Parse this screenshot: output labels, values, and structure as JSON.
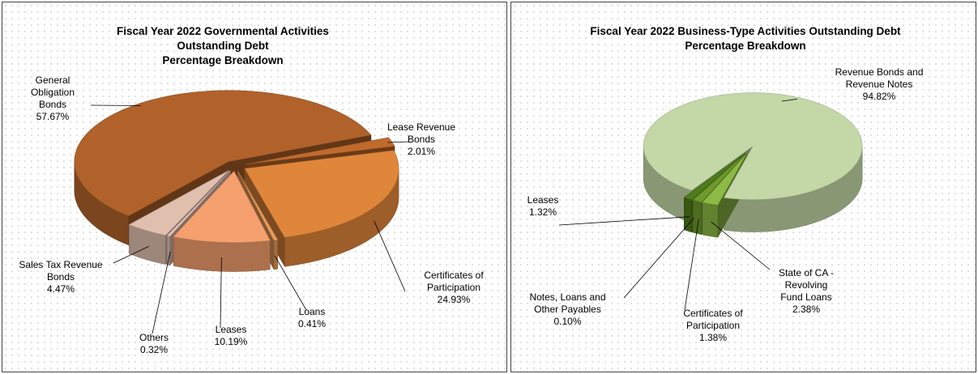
{
  "chart_data": [
    {
      "type": "pie3d",
      "title": [
        "Fiscal Year 2022 Governmental Activities",
        "Outstanding Debt",
        "Percentage Breakdown"
      ],
      "categories": [
        "Lease Revenue Bonds",
        "Certificates of Participation",
        "Loans",
        "Leases",
        "Others",
        "Sales Tax Revenue Bonds",
        "General Obligation Bonds"
      ],
      "values": [
        2.01,
        24.93,
        0.41,
        10.19,
        0.32,
        4.47,
        57.67
      ],
      "value_labels": [
        "2.01%",
        "24.93%",
        "0.41%",
        "10.19%",
        "0.32%",
        "4.47%",
        "57.67%"
      ],
      "colors": [
        "#c06a2c",
        "#e0863a",
        "#e89a58",
        "#f5a06e",
        "#e6c2b6",
        "#e0bfae",
        "#b0622a"
      ]
    },
    {
      "type": "pie3d",
      "title": [
        "Fiscal Year 2022 Business-Type Activities Outstanding Debt",
        "Percentage Breakdown"
      ],
      "categories": [
        "Revenue Bonds and Revenue Notes",
        "State of CA - Revolving Fund Loans",
        "Certificates of Participation",
        "Notes, Loans and Other Payables",
        "Leases"
      ],
      "values": [
        94.82,
        2.38,
        1.38,
        0.1,
        1.32
      ],
      "value_labels": [
        "94.82%",
        "2.38%",
        "1.38%",
        "0.10%",
        "1.32%"
      ],
      "colors": [
        "#c3d8a6",
        "#8cba44",
        "#6f9a2e",
        "#5d8a22",
        "#4e7c1a"
      ]
    }
  ]
}
